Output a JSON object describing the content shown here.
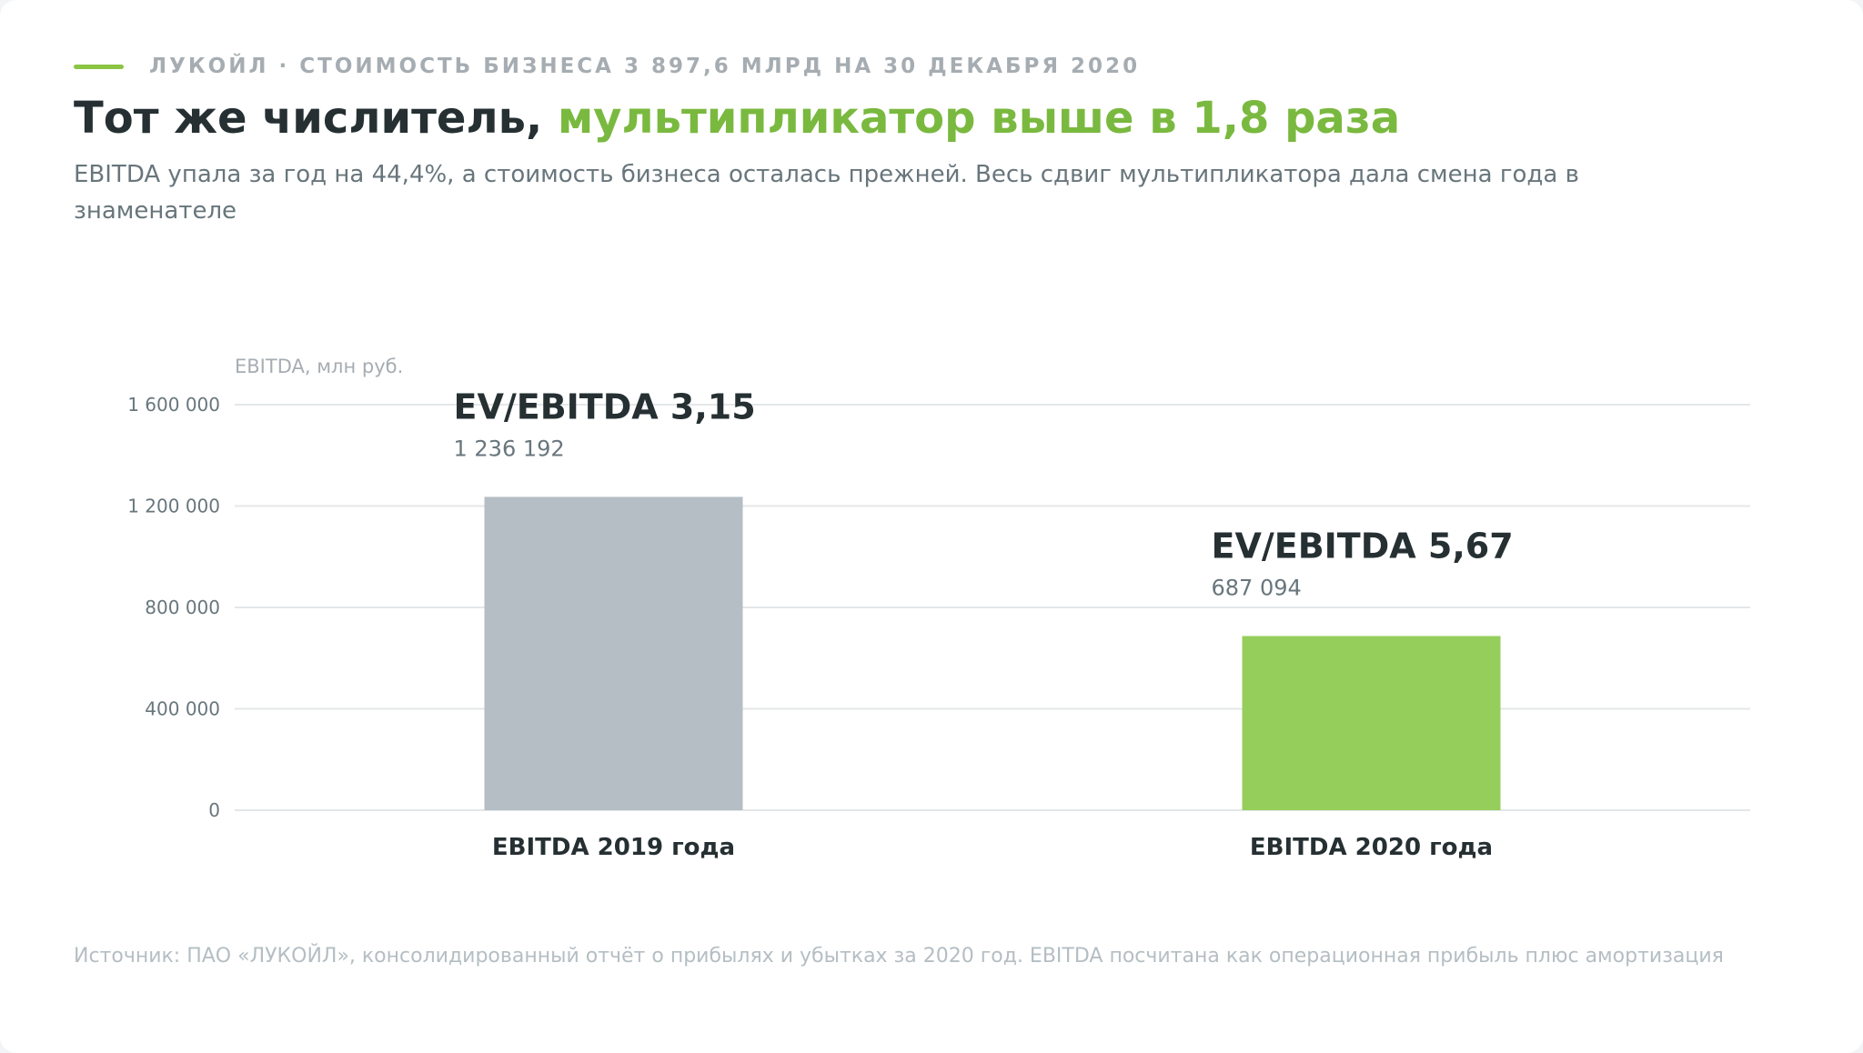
{
  "eyebrow": "ЛУКОЙЛ · СТОИМОСТЬ БИЗНЕСА 3 897,6 МЛРД НА 30 ДЕКАБРЯ 2020",
  "headline": {
    "lead": "Тот же числитель, ",
    "accent": "мультипликатор выше в 1,8 раза"
  },
  "subtitle": "EBITDA упала за год на 44,4%, а стоимость бизнеса осталась прежней. Весь сдвиг мультипликатора дала смена года в знаменателе",
  "footnote": "Источник: ПАО «ЛУКОЙЛ», консолидированный отчёт о прибылях и убытках за 2020 год. EBITDA посчитана как операционная прибыль плюс амортизация",
  "colors": {
    "bar_2019": "#b4bec4",
    "bar_2020": "#95ce5a",
    "accent": "#7ab93f",
    "grid": "#e4e7e9",
    "text_dark": "#263033",
    "text_muted": "#68767c",
    "text_light": "#a6adb2"
  },
  "chart_data": {
    "type": "bar",
    "ylabel": "EBITDA, млн руб.",
    "ylim": [
      0,
      1600000
    ],
    "yticks": [
      0,
      400000,
      800000,
      1200000,
      1600000
    ],
    "ytick_labels": [
      "0",
      "400 000",
      "800 000",
      "1 200 000",
      "1 600 000"
    ],
    "grid": true,
    "categories": [
      "EBITDA 2019 года",
      "EBITDA 2020 года"
    ],
    "values": [
      1236192,
      687094
    ],
    "value_labels": [
      "1 236 192",
      "687 094"
    ],
    "annotations": [
      "EV/EBITDA 3,15",
      "EV/EBITDA 5,67"
    ]
  }
}
